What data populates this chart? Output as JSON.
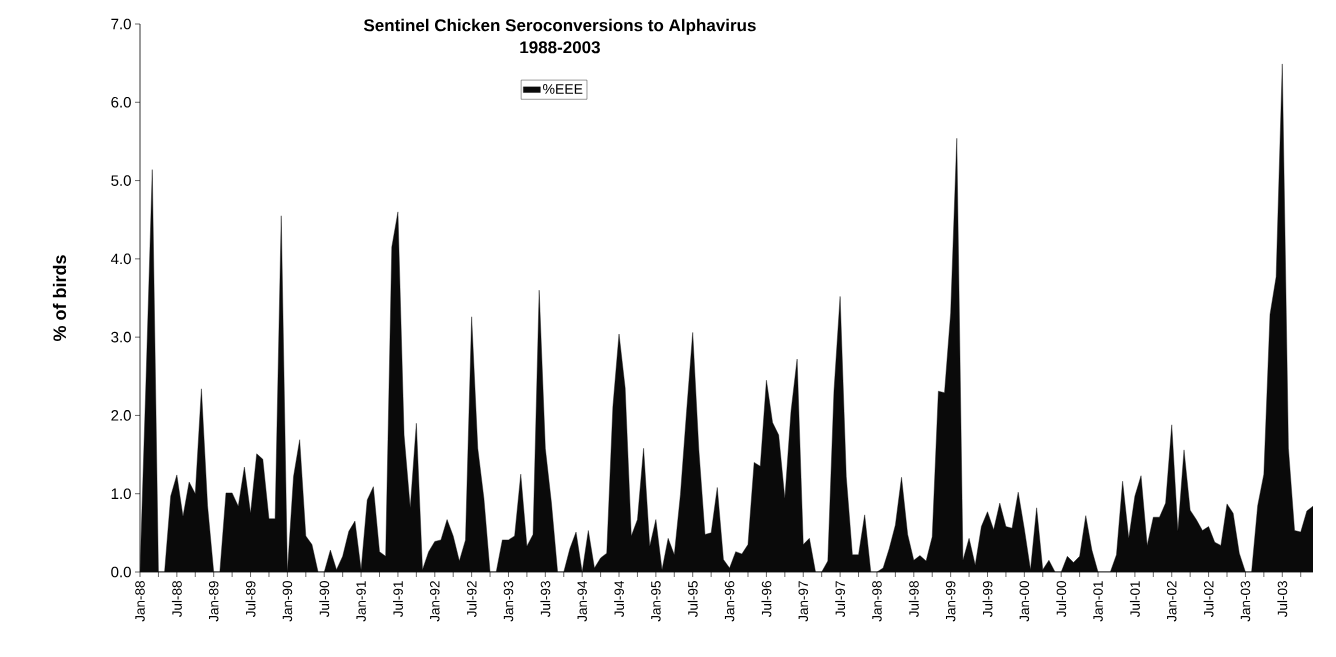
{
  "chart_data": {
    "type": "area",
    "title": "Sentinel Chicken Seroconversions to Alphavirus",
    "subtitle": "1988-2003",
    "ylabel": "% of birds",
    "categories": [
      "Jan-88",
      null,
      null,
      null,
      null,
      null,
      "Jul-88",
      null,
      null,
      null,
      null,
      null,
      "Jan-89",
      null,
      null,
      null,
      null,
      null,
      "Jul-89",
      null,
      null,
      null,
      null,
      null,
      "Jan-90",
      null,
      null,
      null,
      null,
      null,
      "Jul-90",
      null,
      null,
      null,
      null,
      null,
      "Jan-91",
      null,
      null,
      null,
      null,
      null,
      "Jul-91",
      null,
      null,
      null,
      null,
      null,
      "Jan-92",
      null,
      null,
      null,
      null,
      null,
      "Jul-92",
      null,
      null,
      null,
      null,
      null,
      "Jan-93",
      null,
      null,
      null,
      null,
      null,
      "Jul-93",
      null,
      null,
      null,
      null,
      null,
      "Jan-94",
      null,
      null,
      null,
      null,
      null,
      "Jul-94",
      null,
      null,
      null,
      null,
      null,
      "Jan-95",
      null,
      null,
      null,
      null,
      null,
      "Jul-95",
      null,
      null,
      null,
      null,
      null,
      "Jan-96",
      null,
      null,
      null,
      null,
      null,
      "Jul-96",
      null,
      null,
      null,
      null,
      null,
      "Jan-97",
      null,
      null,
      null,
      null,
      null,
      "Jul-97",
      null,
      null,
      null,
      null,
      null,
      "Jan-98",
      null,
      null,
      null,
      null,
      null,
      "Jul-98",
      null,
      null,
      null,
      null,
      null,
      "Jan-99",
      null,
      null,
      null,
      null,
      null,
      "Jul-99",
      null,
      null,
      null,
      null,
      null,
      "Jan-00",
      null,
      null,
      null,
      null,
      null,
      "Jul-00",
      null,
      null,
      null,
      null,
      null,
      "Jan-01",
      null,
      null,
      null,
      null,
      null,
      "Jul-01",
      null,
      null,
      null,
      null,
      null,
      "Jan-02",
      null,
      null,
      null,
      null,
      null,
      "Jul-02",
      null,
      null,
      null,
      null,
      null,
      "Jan-03",
      null,
      null,
      null,
      null,
      null,
      "Jul-03",
      null,
      null,
      null,
      null,
      null
    ],
    "series": [
      {
        "name": "%EEE",
        "color": "#0a0a0a",
        "values": [
          0.0,
          2.5,
          5.14,
          0.0,
          0.0,
          0.97,
          1.24,
          0.71,
          1.15,
          1.0,
          2.34,
          0.85,
          0.0,
          0.0,
          1.01,
          1.01,
          0.84,
          1.34,
          0.75,
          1.51,
          1.44,
          0.68,
          0.68,
          4.55,
          0.0,
          1.22,
          1.69,
          0.46,
          0.35,
          0.0,
          0.0,
          0.28,
          0.03,
          0.2,
          0.52,
          0.65,
          0.03,
          0.92,
          1.09,
          0.26,
          0.2,
          4.15,
          4.6,
          1.75,
          0.82,
          1.9,
          0.03,
          0.26,
          0.39,
          0.41,
          0.67,
          0.46,
          0.14,
          0.41,
          3.26,
          1.58,
          0.94,
          0.0,
          0.0,
          0.41,
          0.41,
          0.46,
          1.25,
          0.33,
          0.48,
          3.6,
          1.58,
          0.88,
          0.0,
          0.0,
          0.3,
          0.51,
          0.0,
          0.53,
          0.05,
          0.18,
          0.24,
          2.11,
          3.04,
          2.35,
          0.46,
          0.67,
          1.58,
          0.33,
          0.67,
          0.03,
          0.43,
          0.22,
          0.99,
          2.05,
          3.06,
          1.56,
          0.48,
          0.5,
          1.08,
          0.16,
          0.05,
          0.26,
          0.23,
          0.35,
          1.4,
          1.35,
          2.45,
          1.91,
          1.75,
          0.94,
          2.05,
          2.72,
          0.35,
          0.43,
          0.0,
          0.0,
          0.14,
          2.31,
          3.52,
          1.22,
          0.22,
          0.22,
          0.73,
          0.0,
          0.0,
          0.05,
          0.3,
          0.6,
          1.21,
          0.48,
          0.15,
          0.21,
          0.14,
          0.45,
          2.31,
          2.29,
          3.31,
          5.54,
          0.15,
          0.43,
          0.09,
          0.58,
          0.77,
          0.54,
          0.88,
          0.58,
          0.56,
          1.02,
          0.55,
          0.03,
          0.82,
          0.03,
          0.15,
          0.0,
          0.0,
          0.2,
          0.12,
          0.2,
          0.72,
          0.28,
          0.0,
          0.0,
          0.0,
          0.22,
          1.16,
          0.43,
          0.97,
          1.23,
          0.34,
          0.7,
          0.7,
          0.88,
          1.88,
          0.52,
          1.56,
          0.79,
          0.67,
          0.53,
          0.58,
          0.38,
          0.34,
          0.87,
          0.75,
          0.24,
          0.0,
          0.0,
          0.85,
          1.25,
          3.29,
          3.77,
          6.49,
          1.58,
          0.53,
          0.51,
          0.78,
          0.84
        ]
      }
    ],
    "ylim": [
      0,
      7
    ],
    "yticks": [
      {
        "value": 0,
        "label": "0.0"
      },
      {
        "value": 1,
        "label": "1.0"
      },
      {
        "value": 2,
        "label": "2.0"
      },
      {
        "value": 3,
        "label": "3.0"
      },
      {
        "value": 4,
        "label": "4.0"
      },
      {
        "value": 5,
        "label": "5.0"
      },
      {
        "value": 6,
        "label": "6.0"
      },
      {
        "value": 7,
        "label": "7.0"
      }
    ],
    "legend": "top"
  }
}
